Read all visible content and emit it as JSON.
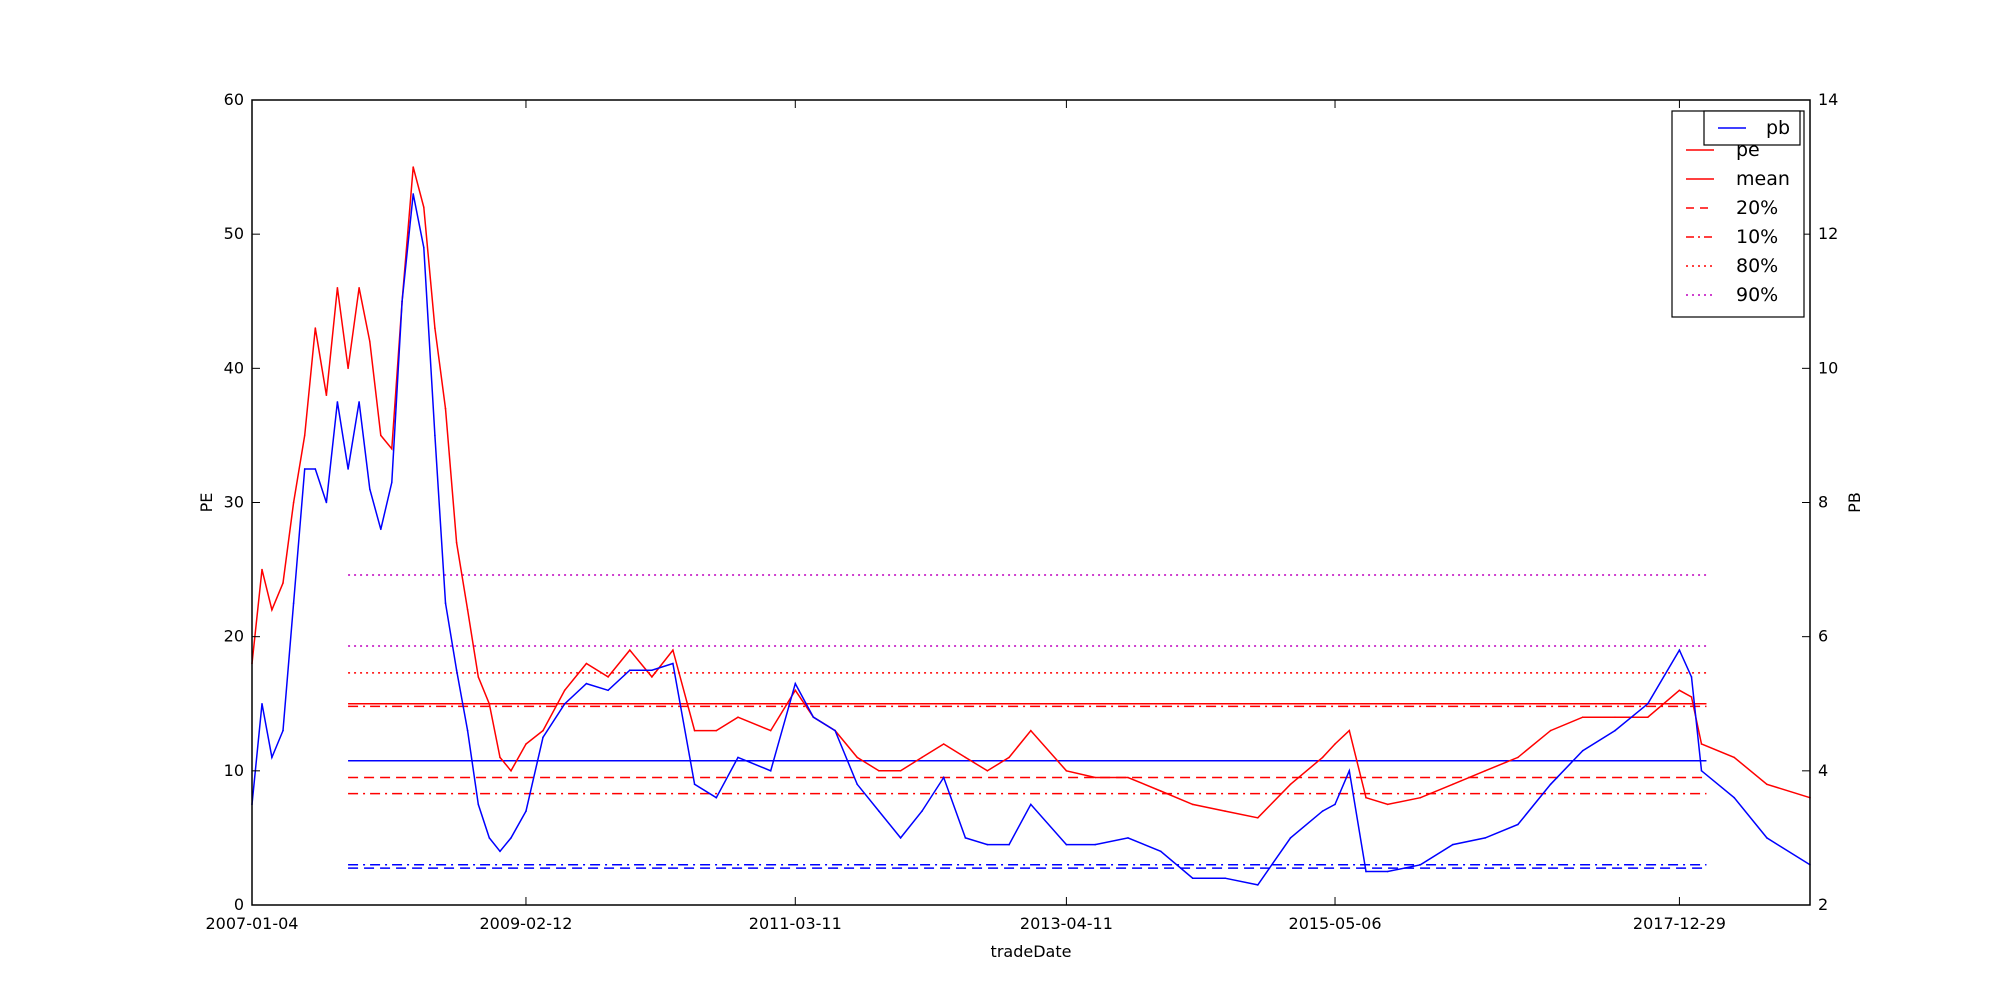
{
  "chart_data": {
    "type": "line",
    "xlabel": "tradeDate",
    "ylabel_left": "PE",
    "ylabel_right": "PB",
    "x_tick_labels": [
      "2007-01-04",
      "2009-02-12",
      "2011-03-11",
      "2013-04-11",
      "2015-05-06",
      "2017-12-29"
    ],
    "x_range": [
      "2007-01-04",
      "2018-12-31"
    ],
    "ylim_left": [
      0,
      60
    ],
    "yticks_left": [
      0,
      10,
      20,
      30,
      40,
      50,
      60
    ],
    "ylim_right": [
      2,
      14
    ],
    "yticks_right": [
      2,
      4,
      6,
      8,
      10,
      12,
      14
    ],
    "grid": false,
    "series": [
      {
        "name": "pe",
        "axis": "left",
        "color": "#ff0000",
        "style": "solid",
        "points": [
          [
            "2007-01-04",
            18
          ],
          [
            "2007-02-01",
            25
          ],
          [
            "2007-03-01",
            22
          ],
          [
            "2007-04-01",
            24
          ],
          [
            "2007-05-01",
            30
          ],
          [
            "2007-06-01",
            35
          ],
          [
            "2007-07-01",
            43
          ],
          [
            "2007-08-01",
            38
          ],
          [
            "2007-09-01",
            46
          ],
          [
            "2007-10-01",
            40
          ],
          [
            "2007-11-01",
            46
          ],
          [
            "2007-12-01",
            42
          ],
          [
            "2008-01-01",
            35
          ],
          [
            "2008-02-01",
            34
          ],
          [
            "2008-03-01",
            45
          ],
          [
            "2008-04-01",
            55
          ],
          [
            "2008-05-01",
            52
          ],
          [
            "2008-06-01",
            43
          ],
          [
            "2008-07-01",
            37
          ],
          [
            "2008-08-01",
            27
          ],
          [
            "2008-09-01",
            22
          ],
          [
            "2008-10-01",
            17
          ],
          [
            "2008-11-01",
            15
          ],
          [
            "2008-12-01",
            11
          ],
          [
            "2009-01-01",
            10
          ],
          [
            "2009-02-12",
            12
          ],
          [
            "2009-04-01",
            13
          ],
          [
            "2009-06-01",
            16
          ],
          [
            "2009-08-01",
            18
          ],
          [
            "2009-10-01",
            17
          ],
          [
            "2009-12-01",
            19
          ],
          [
            "2010-02-01",
            17
          ],
          [
            "2010-04-01",
            19
          ],
          [
            "2010-06-01",
            13
          ],
          [
            "2010-08-01",
            13
          ],
          [
            "2010-10-01",
            14
          ],
          [
            "2011-01-01",
            13
          ],
          [
            "2011-03-11",
            16
          ],
          [
            "2011-05-01",
            14
          ],
          [
            "2011-07-01",
            13
          ],
          [
            "2011-09-01",
            11
          ],
          [
            "2011-11-01",
            10
          ],
          [
            "2012-01-01",
            10
          ],
          [
            "2012-03-01",
            11
          ],
          [
            "2012-05-01",
            12
          ],
          [
            "2012-07-01",
            11
          ],
          [
            "2012-09-01",
            10
          ],
          [
            "2012-11-01",
            11
          ],
          [
            "2013-01-01",
            13
          ],
          [
            "2013-04-11",
            10
          ],
          [
            "2013-07-01",
            9.5
          ],
          [
            "2013-10-01",
            9.5
          ],
          [
            "2014-01-01",
            8.5
          ],
          [
            "2014-04-01",
            7.5
          ],
          [
            "2014-07-01",
            7
          ],
          [
            "2014-10-01",
            6.5
          ],
          [
            "2015-01-01",
            9
          ],
          [
            "2015-04-01",
            11
          ],
          [
            "2015-05-06",
            12
          ],
          [
            "2015-06-15",
            13
          ],
          [
            "2015-08-01",
            8
          ],
          [
            "2015-10-01",
            7.5
          ],
          [
            "2016-01-01",
            8
          ],
          [
            "2016-04-01",
            9
          ],
          [
            "2016-07-01",
            10
          ],
          [
            "2016-10-01",
            11
          ],
          [
            "2017-01-01",
            13
          ],
          [
            "2017-04-01",
            14
          ],
          [
            "2017-07-01",
            14
          ],
          [
            "2017-10-01",
            14
          ],
          [
            "2017-12-29",
            16
          ],
          [
            "2018-02-01",
            15.5
          ],
          [
            "2018-03-01",
            12
          ],
          [
            "2018-06-01",
            11
          ],
          [
            "2018-09-01",
            9
          ],
          [
            "2018-12-31",
            8
          ]
        ]
      },
      {
        "name": "pb",
        "axis": "right",
        "color": "#0000ff",
        "style": "solid",
        "points": [
          [
            "2007-01-04",
            3.5
          ],
          [
            "2007-02-01",
            5
          ],
          [
            "2007-03-01",
            4.2
          ],
          [
            "2007-04-01",
            4.6
          ],
          [
            "2007-05-01",
            6.5
          ],
          [
            "2007-06-01",
            8.5
          ],
          [
            "2007-07-01",
            8.5
          ],
          [
            "2007-08-01",
            8
          ],
          [
            "2007-09-01",
            9.5
          ],
          [
            "2007-10-01",
            8.5
          ],
          [
            "2007-11-01",
            9.5
          ],
          [
            "2007-12-01",
            8.2
          ],
          [
            "2008-01-01",
            7.6
          ],
          [
            "2008-02-01",
            8.3
          ],
          [
            "2008-03-01",
            11
          ],
          [
            "2008-04-01",
            12.6
          ],
          [
            "2008-05-01",
            11.8
          ],
          [
            "2008-06-01",
            9
          ],
          [
            "2008-07-01",
            6.5
          ],
          [
            "2008-08-01",
            5.5
          ],
          [
            "2008-09-01",
            4.6
          ],
          [
            "2008-10-01",
            3.5
          ],
          [
            "2008-11-01",
            3
          ],
          [
            "2008-12-01",
            2.8
          ],
          [
            "2009-01-01",
            3
          ],
          [
            "2009-02-12",
            3.4
          ],
          [
            "2009-04-01",
            4.5
          ],
          [
            "2009-06-01",
            5
          ],
          [
            "2009-08-01",
            5.3
          ],
          [
            "2009-10-01",
            5.2
          ],
          [
            "2009-12-01",
            5.5
          ],
          [
            "2010-02-01",
            5.5
          ],
          [
            "2010-04-01",
            5.6
          ],
          [
            "2010-06-01",
            3.8
          ],
          [
            "2010-08-01",
            3.6
          ],
          [
            "2010-10-01",
            4.2
          ],
          [
            "2011-01-01",
            4
          ],
          [
            "2011-03-11",
            5.3
          ],
          [
            "2011-05-01",
            4.8
          ],
          [
            "2011-07-01",
            4.6
          ],
          [
            "2011-09-01",
            3.8
          ],
          [
            "2011-11-01",
            3.4
          ],
          [
            "2012-01-01",
            3
          ],
          [
            "2012-03-01",
            3.4
          ],
          [
            "2012-05-01",
            3.9
          ],
          [
            "2012-07-01",
            3
          ],
          [
            "2012-09-01",
            2.9
          ],
          [
            "2012-11-01",
            2.9
          ],
          [
            "2013-01-01",
            3.5
          ],
          [
            "2013-04-11",
            2.9
          ],
          [
            "2013-07-01",
            2.9
          ],
          [
            "2013-10-01",
            3
          ],
          [
            "2014-01-01",
            2.8
          ],
          [
            "2014-04-01",
            2.4
          ],
          [
            "2014-07-01",
            2.4
          ],
          [
            "2014-10-01",
            2.3
          ],
          [
            "2015-01-01",
            3
          ],
          [
            "2015-04-01",
            3.4
          ],
          [
            "2015-05-06",
            3.5
          ],
          [
            "2015-06-15",
            4
          ],
          [
            "2015-08-01",
            2.5
          ],
          [
            "2015-10-01",
            2.5
          ],
          [
            "2016-01-01",
            2.6
          ],
          [
            "2016-04-01",
            2.9
          ],
          [
            "2016-07-01",
            3
          ],
          [
            "2016-10-01",
            3.2
          ],
          [
            "2017-01-01",
            3.8
          ],
          [
            "2017-04-01",
            4.3
          ],
          [
            "2017-07-01",
            4.6
          ],
          [
            "2017-10-01",
            5
          ],
          [
            "2017-12-29",
            5.8
          ],
          [
            "2018-02-01",
            5.4
          ],
          [
            "2018-03-01",
            4
          ],
          [
            "2018-06-01",
            3.6
          ],
          [
            "2018-09-01",
            3
          ],
          [
            "2018-12-31",
            2.6
          ]
        ]
      }
    ],
    "hlines": [
      {
        "name": "mean",
        "axis": "left",
        "value": 15,
        "color": "#ff0000",
        "style": "solid",
        "from": "2007-10-01",
        "to": "2018-03-15"
      },
      {
        "name": "20%",
        "axis": "left",
        "value": 9.5,
        "color": "#ff0000",
        "style": "dashed",
        "from": "2007-10-01",
        "to": "2018-03-15"
      },
      {
        "name": "10%",
        "axis": "left",
        "value": 8.3,
        "color": "#ff0000",
        "style": "dashdot",
        "from": "2007-10-01",
        "to": "2018-03-15"
      },
      {
        "name": "80%",
        "axis": "left",
        "value": 17.3,
        "color": "#ff0000",
        "style": "dotted",
        "from": "2007-10-01",
        "to": "2018-03-15"
      },
      {
        "name": "90%",
        "axis": "left",
        "value": 19.3,
        "color": "#bf00bf",
        "style": "dotted",
        "from": "2007-10-01",
        "to": "2018-03-15"
      },
      {
        "name": "",
        "axis": "left",
        "value": 24.6,
        "color": "#bf00bf",
        "style": "dotted",
        "from": "2007-10-01",
        "to": "2018-03-15"
      },
      {
        "name": "",
        "axis": "left",
        "value": 14.8,
        "color": "#ff0000",
        "style": "dashdot",
        "from": "2007-10-01",
        "to": "2018-03-15"
      },
      {
        "name": "",
        "axis": "right",
        "value": 4.15,
        "color": "#0000ff",
        "style": "solid",
        "from": "2007-10-01",
        "to": "2018-03-15"
      },
      {
        "name": "",
        "axis": "right",
        "value": 2.55,
        "color": "#0000ff",
        "style": "dashed",
        "from": "2007-10-01",
        "to": "2018-03-15"
      },
      {
        "name": "",
        "axis": "right",
        "value": 2.6,
        "color": "#0000ff",
        "style": "dashdot",
        "from": "2007-10-01",
        "to": "2018-03-15"
      }
    ],
    "legend_right": {
      "placement": "top-right",
      "entries": [
        {
          "label": "pb",
          "color": "#0000ff",
          "style": "solid"
        }
      ]
    },
    "legend_left": {
      "placement": "top-right",
      "entries": [
        {
          "label": "pe",
          "color": "#ff0000",
          "style": "solid"
        },
        {
          "label": "mean",
          "color": "#ff0000",
          "style": "solid"
        },
        {
          "label": "20%",
          "color": "#ff0000",
          "style": "dashed"
        },
        {
          "label": "10%",
          "color": "#ff0000",
          "style": "dashdot"
        },
        {
          "label": "80%",
          "color": "#ff0000",
          "style": "dotted"
        },
        {
          "label": "90%",
          "color": "#bf00bf",
          "style": "dotted"
        }
      ]
    }
  }
}
